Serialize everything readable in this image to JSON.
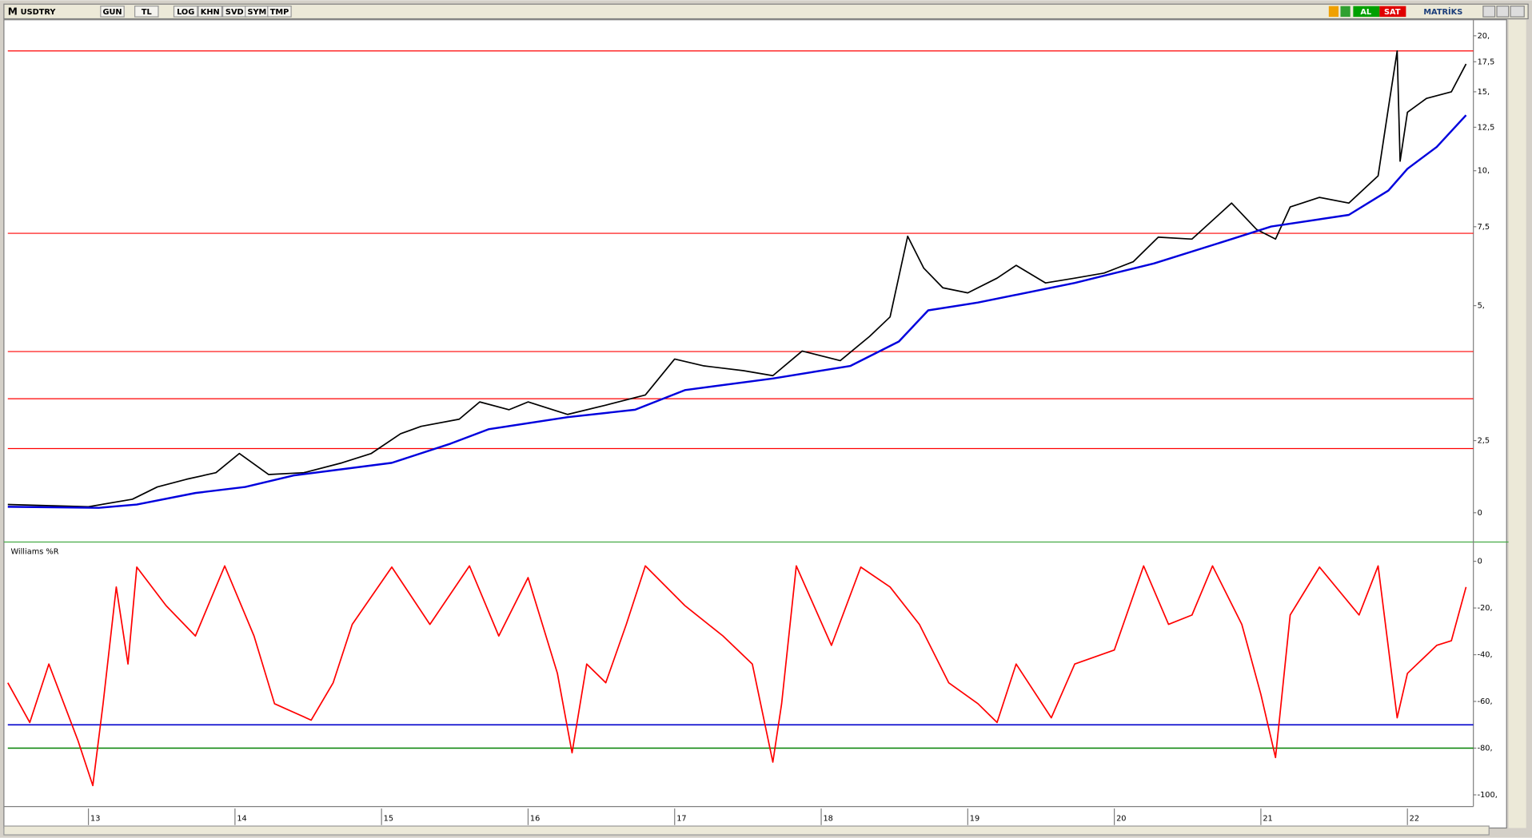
{
  "toolbar": {
    "logo": "M",
    "symbol": "USDTRY",
    "buttons": [
      "GUN",
      "TL",
      "LOG",
      "KHN",
      "SVD",
      "SYM",
      "TMP"
    ],
    "buy": "AL",
    "sell": "SAT",
    "brand": "MATRİKS"
  },
  "chart_data": [
    {
      "type": "line",
      "log_scale": true,
      "ylim": [
        1.5,
        21.5
      ],
      "xlim": [
        12.45,
        22.45
      ],
      "yticks": [
        {
          "value": 20,
          "label": "20,"
        },
        {
          "value": 17.5,
          "label": "17,5"
        },
        {
          "value": 15,
          "label": "15,"
        },
        {
          "value": 12.5,
          "label": "12,5"
        },
        {
          "value": 10,
          "label": "10,"
        },
        {
          "value": 7.5,
          "label": "7,5"
        },
        {
          "value": 5,
          "label": "5,"
        },
        {
          "value": 2.5,
          "label": "2,5"
        },
        0
      ],
      "hlines": [
        {
          "value": 18.5,
          "color": "#ff0000"
        },
        {
          "value": 7.25,
          "color": "#ff0000"
        },
        {
          "value": 3.95,
          "color": "#ff0000"
        },
        {
          "value": 3.1,
          "color": "#ff0000"
        },
        {
          "value": 2.4,
          "color": "#ff0000"
        }
      ],
      "series": [
        {
          "color": "#000000",
          "x": [
            12.45,
            13,
            13.3,
            13.47,
            13.67,
            13.87,
            14.03,
            14.23,
            14.47,
            14.73,
            14.93,
            15.13,
            15.27,
            15.53,
            15.67,
            15.87,
            16,
            16.27,
            16.53,
            16.8,
            17,
            17.2,
            17.47,
            17.67,
            17.87,
            18.13,
            18.33,
            18.47,
            18.59,
            18.7,
            18.83,
            19,
            19.2,
            19.33,
            19.53,
            19.73,
            19.93,
            20.13,
            20.3,
            20.53,
            20.8,
            20.97,
            21.1,
            21.2,
            21.4,
            21.6,
            21.8,
            21.87,
            21.93,
            21.95,
            22,
            22.13,
            22.3,
            22.4
          ],
          "values": [
            1.8,
            1.78,
            1.85,
            1.97,
            2.05,
            2.12,
            2.34,
            2.1,
            2.12,
            2.23,
            2.34,
            2.59,
            2.69,
            2.79,
            3.05,
            2.93,
            3.05,
            2.86,
            3.0,
            3.16,
            3.8,
            3.67,
            3.58,
            3.49,
            3.96,
            3.77,
            4.27,
            4.72,
            7.14,
            6.06,
            5.48,
            5.34,
            5.76,
            6.15,
            5.62,
            5.76,
            5.91,
            6.27,
            7.11,
            7.04,
            8.47,
            7.4,
            7.04,
            8.3,
            8.72,
            8.47,
            9.74,
            13.8,
            18.5,
            10.5,
            13.5,
            14.5,
            15.0,
            17.3
          ]
        },
        {
          "color": "#0000dd",
          "x": [
            12.45,
            13.07,
            13.33,
            13.73,
            14.07,
            14.4,
            15.07,
            15.47,
            15.73,
            16.27,
            16.73,
            17.07,
            17.67,
            18.2,
            18.53,
            18.73,
            19.07,
            19.73,
            20.27,
            20.8,
            21.07,
            21.6,
            21.87,
            22,
            22.2,
            22.4
          ],
          "values": [
            1.78,
            1.77,
            1.8,
            1.91,
            1.97,
            2.09,
            2.23,
            2.46,
            2.65,
            2.82,
            2.93,
            3.24,
            3.44,
            3.67,
            4.16,
            4.88,
            5.08,
            5.62,
            6.21,
            7.04,
            7.51,
            7.97,
            9.03,
            10.1,
            11.3,
            13.3
          ]
        }
      ]
    },
    {
      "type": "line",
      "title": "Williams %R",
      "ylim": [
        -105,
        7
      ],
      "xlim": [
        12.45,
        22.45
      ],
      "yticks": [
        0,
        {
          "value": -20,
          "label": "-20,"
        },
        {
          "value": -40,
          "label": "-40,"
        },
        {
          "value": -60,
          "label": "-60,"
        },
        {
          "value": -80,
          "label": "-80,"
        },
        {
          "value": -100,
          "label": "-100,"
        }
      ],
      "xticks": [
        13,
        14,
        15,
        16,
        17,
        18,
        19,
        20,
        21,
        22
      ],
      "hlines": [
        {
          "value": -70,
          "color": "#0000cc"
        },
        {
          "value": -80,
          "color": "#008000"
        }
      ],
      "series": [
        {
          "color": "#ff0000",
          "x": [
            12.45,
            12.6,
            12.73,
            12.93,
            13.03,
            13.1,
            13.19,
            13.27,
            13.33,
            13.53,
            13.73,
            13.93,
            14.13,
            14.27,
            14.52,
            14.67,
            14.8,
            15.07,
            15.33,
            15.6,
            15.8,
            16,
            16.2,
            16.3,
            16.4,
            16.53,
            16.67,
            16.8,
            17.07,
            17.33,
            17.53,
            17.67,
            17.73,
            17.83,
            18.07,
            18.27,
            18.47,
            18.67,
            18.87,
            19.07,
            19.2,
            19.33,
            19.57,
            19.73,
            20,
            20.2,
            20.37,
            20.53,
            20.67,
            20.87,
            21,
            21.1,
            21.2,
            21.4,
            21.67,
            21.8,
            21.93,
            22,
            22.2,
            22.3,
            22.4
          ],
          "values": [
            -52,
            -69,
            -44,
            -77,
            -96,
            -61,
            -11,
            -44,
            -2.5,
            -19,
            -32,
            -2,
            -32,
            -61,
            -68,
            -52,
            -27,
            -2.5,
            -27,
            -2,
            -32,
            -7,
            -48,
            -82,
            -44,
            -52,
            -27,
            -2,
            -19,
            -32,
            -44,
            -86,
            -61,
            -2,
            -36,
            -2.5,
            -11,
            -27,
            -52,
            -61,
            -69,
            -44,
            -67,
            -44,
            -38,
            -2,
            -27,
            -23,
            -2,
            -27,
            -57,
            -84,
            -23,
            -2.5,
            -23,
            -2,
            -67,
            -48,
            -36,
            -34,
            -11
          ]
        }
      ]
    }
  ]
}
